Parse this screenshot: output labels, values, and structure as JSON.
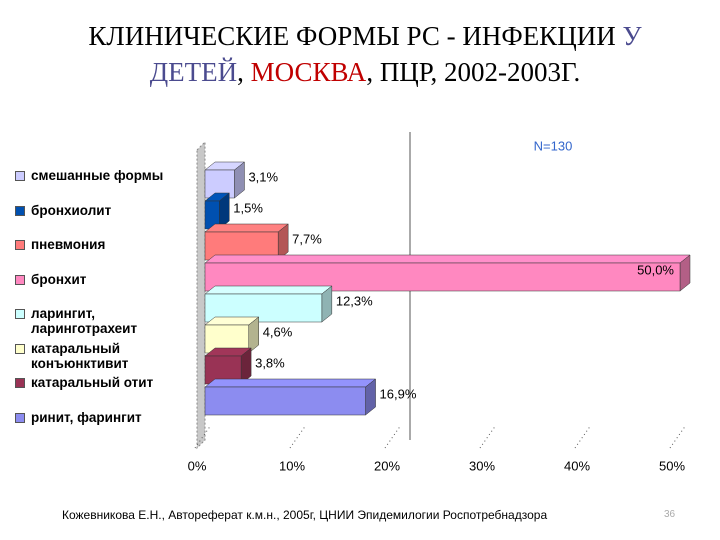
{
  "title": [
    {
      "text": "КЛИНИЧЕСКИЕ ФОРМЫ РС - ИНФЕКЦИИ ",
      "color": "#000000"
    },
    {
      "text": "У ДЕТЕЙ",
      "color": "#4b4b8f"
    },
    {
      "text": ", ",
      "color": "#000000"
    },
    {
      "text": "МОСКВА",
      "color": "#c00000"
    },
    {
      "text": ", ПЦР, 2002-2003Г.",
      "color": "#000000"
    }
  ],
  "chart_data": {
    "type": "bar",
    "orientation": "horizontal",
    "annotation": "N=130",
    "categories": [
      "смешанные формы",
      "бронхиолит",
      "пневмония",
      "бронхит",
      "ларингит, ларинготрахеит",
      "катаральный конъюнктивит",
      "катаральный отит",
      "ринит, фарингит"
    ],
    "values": [
      3.1,
      1.5,
      7.7,
      50.0,
      12.3,
      4.6,
      3.8,
      16.9
    ],
    "value_labels": [
      "3,1%",
      "1,5%",
      "7,7%",
      "50,0%",
      "12,3%",
      "4,6%",
      "3,8%",
      "16,9%"
    ],
    "colors": [
      "#ccccff",
      "#0050b0",
      "#ff7b7b",
      "#ff88c0",
      "#ccffff",
      "#ffffcc",
      "#993355",
      "#8c8cf0"
    ],
    "xlim": [
      0,
      50
    ],
    "xticks": [
      {
        "value": 0,
        "label": "0%"
      },
      {
        "value": 10,
        "label": "10%"
      },
      {
        "value": 20,
        "label": "20%"
      },
      {
        "value": 30,
        "label": "30%"
      },
      {
        "value": 40,
        "label": "40%"
      },
      {
        "value": 50,
        "label": "50%"
      }
    ],
    "legend": "left"
  },
  "footer": {
    "source": "Кожевникова Е.Н., Автореферат к.м.н., 2005г, ЦНИИ Эпидемилогии Роспотребнадзора",
    "page": "36"
  }
}
